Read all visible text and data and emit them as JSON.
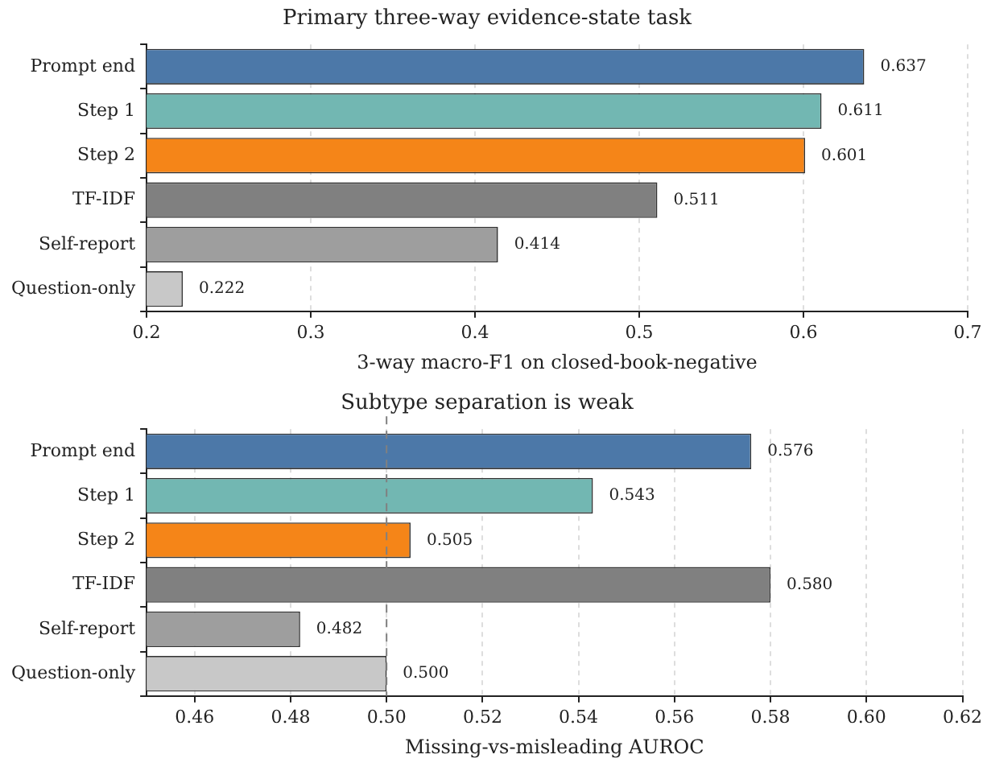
{
  "chart_data": [
    {
      "type": "bar",
      "orientation": "horizontal",
      "title": "Primary three-way evidence-state task",
      "xlabel": "3-way macro-F1 on closed-book-negative",
      "categories": [
        "Prompt end",
        "Step 1",
        "Step 2",
        "TF-IDF",
        "Self-report",
        "Question-only"
      ],
      "values": [
        0.637,
        0.611,
        0.601,
        0.511,
        0.414,
        0.222
      ],
      "value_labels": [
        "0.637",
        "0.611",
        "0.601",
        "0.511",
        "0.414",
        "0.222"
      ],
      "colors": [
        "#4c78a8",
        "#72b7b2",
        "#f58518",
        "#808080",
        "#9e9e9e",
        "#c8c8c8"
      ],
      "xlim": [
        0.2,
        0.7
      ],
      "xticks": [
        0.2,
        0.3,
        0.4,
        0.5,
        0.6,
        0.7
      ],
      "grid": "x",
      "legend": false
    },
    {
      "type": "bar",
      "orientation": "horizontal",
      "title": "Subtype separation is weak",
      "xlabel": "Missing-vs-misleading AUROC",
      "categories": [
        "Prompt end",
        "Step 1",
        "Step 2",
        "TF-IDF",
        "Self-report",
        "Question-only"
      ],
      "values": [
        0.576,
        0.543,
        0.505,
        0.58,
        0.482,
        0.5
      ],
      "value_labels": [
        "0.576",
        "0.543",
        "0.505",
        "0.580",
        "0.482",
        "0.500"
      ],
      "colors": [
        "#4c78a8",
        "#72b7b2",
        "#f58518",
        "#808080",
        "#9e9e9e",
        "#c8c8c8"
      ],
      "xlim": [
        0.45,
        0.62
      ],
      "xticks": [
        0.46,
        0.48,
        {
          "value": 0.5,
          "label": "0.50"
        },
        0.52,
        0.54,
        0.56,
        0.58,
        {
          "value": 0.6,
          "label": "0.60"
        },
        0.62
      ],
      "grid": "x",
      "legend": false,
      "ref_lines": [
        {
          "axis": "x",
          "value": 0.5,
          "color": "#808080",
          "line_style": "dashed"
        }
      ]
    }
  ]
}
